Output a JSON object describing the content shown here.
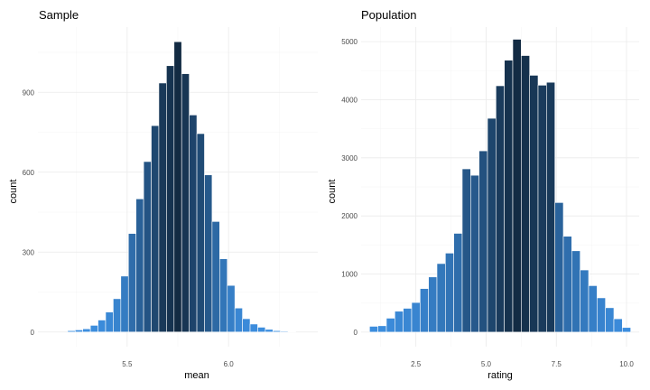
{
  "chart_data": [
    {
      "type": "bar",
      "title": "Sample",
      "xlabel": "mean",
      "ylabel": "count",
      "xlim": [
        5.06,
        6.44
      ],
      "ylim": [
        -55,
        1145
      ],
      "xticks": [
        5.5,
        6.0
      ],
      "xtick_labels": [
        "5.5",
        "6.0"
      ],
      "yticks": [
        0,
        300,
        600,
        900
      ],
      "ytick_labels": [
        "0",
        "300",
        "600",
        "900"
      ],
      "grid": true,
      "legend": "none",
      "bin_width": 0.0375,
      "x": [
        5.225,
        5.2625,
        5.3,
        5.3375,
        5.375,
        5.4125,
        5.45,
        5.4875,
        5.525,
        5.5625,
        5.6,
        5.6375,
        5.675,
        5.7125,
        5.75,
        5.7875,
        5.825,
        5.8625,
        5.9,
        5.9375,
        5.975,
        6.0125,
        6.05,
        6.0875,
        6.125,
        6.1625,
        6.2,
        6.2375,
        6.275,
        6.3125
      ],
      "values": [
        5,
        8,
        12,
        25,
        45,
        75,
        125,
        210,
        370,
        500,
        640,
        775,
        935,
        1000,
        1090,
        970,
        815,
        745,
        590,
        415,
        275,
        175,
        90,
        50,
        30,
        18,
        10,
        5,
        3,
        2
      ]
    },
    {
      "type": "bar",
      "title": "Population",
      "xlabel": "rating",
      "ylabel": "count",
      "xlim": [
        0.55,
        10.45
      ],
      "ylim": [
        -250,
        5250
      ],
      "xticks": [
        2.5,
        5.0,
        7.5,
        10.0
      ],
      "xtick_labels": [
        "2.5",
        "5.0",
        "7.5",
        "10.0"
      ],
      "yticks": [
        0,
        1000,
        2000,
        3000,
        4000,
        5000
      ],
      "ytick_labels": [
        "0",
        "1000",
        "2000",
        "3000",
        "4000",
        "5000"
      ],
      "grid": true,
      "legend": "none",
      "bin_width": 0.3,
      "x": [
        1.0,
        1.3,
        1.6,
        1.9,
        2.2,
        2.5,
        2.8,
        3.1,
        3.4,
        3.7,
        4.0,
        4.3,
        4.6,
        4.9,
        5.2,
        5.5,
        5.8,
        6.1,
        6.4,
        6.7,
        7.0,
        7.3,
        7.6,
        7.9,
        8.2,
        8.5,
        8.8,
        9.1,
        9.4,
        9.7,
        10.0
      ],
      "values": [
        100,
        110,
        240,
        360,
        410,
        510,
        750,
        950,
        1180,
        1360,
        1700,
        2810,
        2700,
        3120,
        3680,
        4240,
        4680,
        5040,
        4760,
        4420,
        4250,
        4300,
        2230,
        1650,
        1400,
        1070,
        800,
        590,
        420,
        230,
        80
      ]
    }
  ],
  "colors": {
    "fill_low": "#3d8fe0",
    "fill_high": "#132b43",
    "outline": "#ffffff"
  }
}
